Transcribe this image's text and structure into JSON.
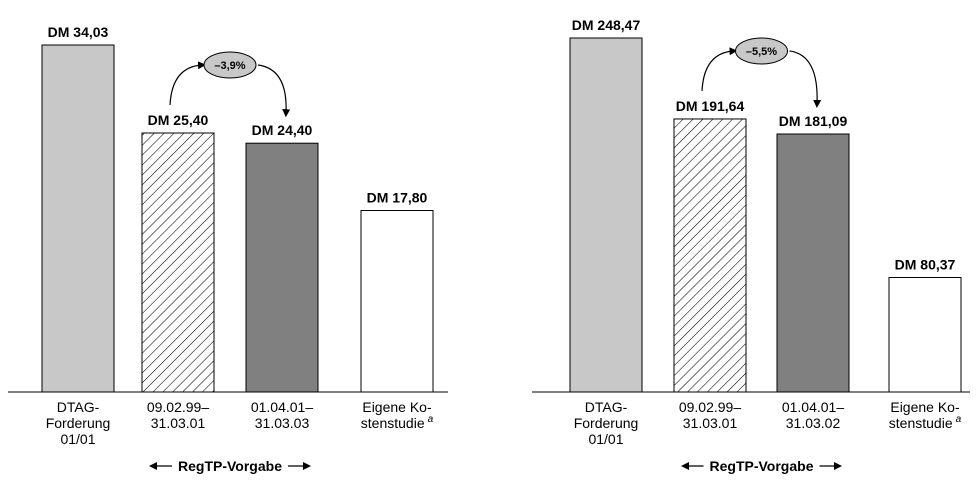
{
  "chart_data": [
    {
      "type": "bar",
      "categories": [
        [
          "DTAG-",
          "Forderung",
          "01/01"
        ],
        [
          "09.02.99–",
          "31.03.01"
        ],
        [
          "01.04.01–",
          "31.03.03"
        ],
        [
          "Eigene Ko-",
          "stenstudie"
        ]
      ],
      "values": [
        34.03,
        25.4,
        24.4,
        17.8
      ],
      "value_labels": [
        "DM 34,03",
        "DM 25,40",
        "DM 24,40",
        "DM 17,80"
      ],
      "bar_styles": [
        "light-gray",
        "hatched",
        "dark-gray",
        "white"
      ],
      "footnote_marker": "a",
      "footnote_category_index": 3,
      "change": {
        "label": "–3,9%",
        "from_index": 1,
        "to_index": 2
      },
      "range_label": "RegTP-Vorgabe",
      "range_categories": [
        1,
        2
      ],
      "ylim": [
        0,
        34.03
      ]
    },
    {
      "type": "bar",
      "categories": [
        [
          "DTAG-",
          "Forderung",
          "01/01"
        ],
        [
          "09.02.99–",
          "31.03.01"
        ],
        [
          "01.04.01–",
          "31.03.02"
        ],
        [
          "Eigene Ko-",
          "stenstudie"
        ]
      ],
      "values": [
        248.47,
        191.64,
        181.09,
        80.37
      ],
      "value_labels": [
        "DM 248,47",
        "DM 191,64",
        "DM 181,09",
        "DM 80,37"
      ],
      "bar_styles": [
        "light-gray",
        "hatched",
        "dark-gray",
        "white"
      ],
      "footnote_marker": "a",
      "footnote_category_index": 3,
      "change": {
        "label": "–5,5%",
        "from_index": 1,
        "to_index": 2
      },
      "range_label": "RegTP-Vorgabe",
      "range_categories": [
        1,
        2
      ],
      "ylim": [
        0,
        248.47
      ]
    }
  ],
  "colors": {
    "light_gray": "#c8c8c8",
    "dark_gray": "#808080",
    "white": "#ffffff",
    "stroke": "#000000",
    "cloud": "#c8c8c8"
  }
}
